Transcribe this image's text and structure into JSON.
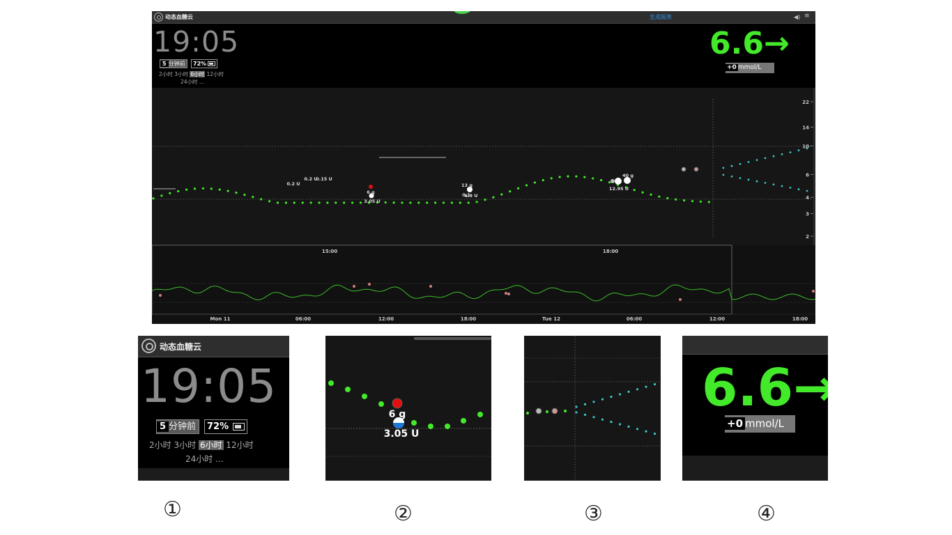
{
  "app": {
    "name": "动态血糖云",
    "report_link": "生成报表",
    "speaker_icon": "speaker-icon",
    "menu_icon": "menu-icon"
  },
  "status": {
    "time": "19:05",
    "minutes_ago": "5",
    "ago_unit": "分钟前",
    "battery": "72%",
    "ranges": [
      "2小时",
      "3小时",
      "6小时",
      "12小时"
    ],
    "selected_range": "6小时",
    "range_24": "24小时 ..."
  },
  "glucose": {
    "value": "6.6",
    "arrow": "→",
    "delta": "+0",
    "unit": "mmol/L",
    "color": "#43ea2a"
  },
  "chart_data": [
    {
      "type": "scatter",
      "name": "main-chart",
      "yscale": "log",
      "ytick_labels": [
        "22",
        "14",
        "10",
        "6",
        "4",
        "3",
        "2"
      ],
      "x_tick_labels": [
        "15:00",
        "18:00"
      ],
      "annotations": [
        "0.2 U",
        "0.2 U",
        "0.15 U",
        "6 g",
        "3.05 U",
        "13 g",
        "0.1",
        "6.9 U",
        "40 g",
        "12.95 U"
      ]
    },
    {
      "type": "line",
      "name": "overview-chart",
      "x_tick_labels": [
        "Mon 11",
        "06:00",
        "12:00",
        "18:00",
        "Tue 12",
        "06:00",
        "12:00",
        "18:00"
      ]
    }
  ],
  "zoom": {
    "labels": [
      "①",
      "②",
      "③",
      "④"
    ],
    "z2_carbs": "6 g",
    "z2_insulin": "3.05 U"
  }
}
